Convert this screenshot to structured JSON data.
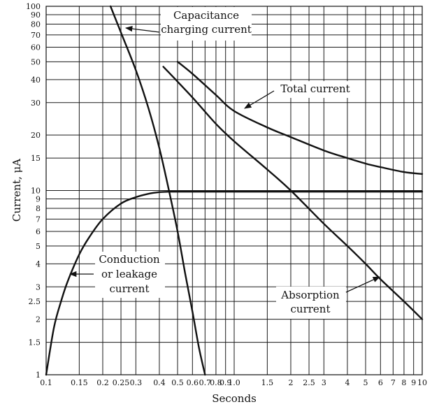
{
  "chart_data": {
    "type": "line",
    "title": "",
    "xlabel": "Seconds",
    "ylabel": "Current, μA",
    "xscale": "log",
    "yscale": "log",
    "xlim": [
      0.1,
      10
    ],
    "ylim": [
      1,
      100
    ],
    "grid": true,
    "x_tick_labels": [
      {
        "v": 0.1,
        "t": "0.1"
      },
      {
        "v": 0.15,
        "t": "0.15"
      },
      {
        "v": 0.2,
        "t": "0.2"
      },
      {
        "v": 0.25,
        "t": "0.25"
      },
      {
        "v": 0.3,
        "t": "0.3"
      },
      {
        "v": 0.4,
        "t": "0.4"
      },
      {
        "v": 0.5,
        "t": "0.5"
      },
      {
        "v": 0.6,
        "t": "0.6"
      },
      {
        "v": 0.7,
        "t": "0.7"
      },
      {
        "v": 0.8,
        "t": "0.8"
      },
      {
        "v": 0.9,
        "t": "0.9"
      },
      {
        "v": 1.0,
        "t": "1.0"
      },
      {
        "v": 1.5,
        "t": "1.5"
      },
      {
        "v": 2,
        "t": "2"
      },
      {
        "v": 2.5,
        "t": "2.5"
      },
      {
        "v": 3,
        "t": "3"
      },
      {
        "v": 4,
        "t": "4"
      },
      {
        "v": 5,
        "t": "5"
      },
      {
        "v": 6,
        "t": "6"
      },
      {
        "v": 7,
        "t": "7"
      },
      {
        "v": 8,
        "t": "8"
      },
      {
        "v": 9,
        "t": "9"
      },
      {
        "v": 10,
        "t": "10"
      }
    ],
    "y_tick_labels": [
      {
        "v": 1,
        "t": "1"
      },
      {
        "v": 1.5,
        "t": "1.5"
      },
      {
        "v": 2,
        "t": "2"
      },
      {
        "v": 2.5,
        "t": "2.5"
      },
      {
        "v": 3,
        "t": "3"
      },
      {
        "v": 4,
        "t": "4"
      },
      {
        "v": 5,
        "t": "5"
      },
      {
        "v": 6,
        "t": "6"
      },
      {
        "v": 7,
        "t": "7"
      },
      {
        "v": 8,
        "t": "8"
      },
      {
        "v": 9,
        "t": "9"
      },
      {
        "v": 10,
        "t": "10"
      },
      {
        "v": 15,
        "t": "15"
      },
      {
        "v": 20,
        "t": "20"
      },
      {
        "v": 30,
        "t": "30"
      },
      {
        "v": 40,
        "t": "40"
      },
      {
        "v": 50,
        "t": "50"
      },
      {
        "v": 60,
        "t": "60"
      },
      {
        "v": 70,
        "t": "70"
      },
      {
        "v": 80,
        "t": "80"
      },
      {
        "v": 90,
        "t": "90"
      },
      {
        "v": 100,
        "t": "100"
      }
    ],
    "x_grid_values": [
      0.1,
      0.15,
      0.2,
      0.25,
      0.3,
      0.4,
      0.5,
      0.6,
      0.7,
      0.8,
      0.9,
      1.0,
      1.5,
      2,
      2.5,
      3,
      4,
      5,
      6,
      7,
      8,
      9,
      10
    ],
    "y_grid_values": [
      1,
      1.5,
      2,
      2.5,
      3,
      4,
      5,
      6,
      7,
      8,
      9,
      10,
      15,
      20,
      30,
      40,
      50,
      60,
      70,
      80,
      90,
      100
    ],
    "series": [
      {
        "key": "capacitance",
        "points": [
          [
            0.22,
            100
          ],
          [
            0.25,
            72
          ],
          [
            0.3,
            45
          ],
          [
            0.35,
            28
          ],
          [
            0.4,
            17
          ],
          [
            0.45,
            10
          ],
          [
            0.5,
            6
          ],
          [
            0.55,
            3.5
          ],
          [
            0.6,
            2.2
          ],
          [
            0.65,
            1.4
          ],
          [
            0.7,
            1.0
          ]
        ]
      },
      {
        "key": "conduction",
        "points": [
          [
            0.1,
            1.0
          ],
          [
            0.11,
            1.8
          ],
          [
            0.12,
            2.5
          ],
          [
            0.13,
            3.2
          ],
          [
            0.15,
            4.5
          ],
          [
            0.17,
            5.6
          ],
          [
            0.2,
            7.0
          ],
          [
            0.25,
            8.5
          ],
          [
            0.3,
            9.2
          ],
          [
            0.35,
            9.6
          ],
          [
            0.4,
            9.8
          ],
          [
            0.45,
            9.85
          ],
          [
            0.5,
            9.85
          ],
          [
            1,
            9.85
          ],
          [
            2,
            9.85
          ],
          [
            5,
            9.85
          ],
          [
            10,
            9.85
          ]
        ]
      },
      {
        "key": "absorption",
        "points": [
          [
            0.42,
            47
          ],
          [
            0.6,
            32
          ],
          [
            0.8,
            23
          ],
          [
            1.0,
            18.5
          ],
          [
            1.5,
            13
          ],
          [
            2.0,
            10
          ],
          [
            3.0,
            6.6
          ],
          [
            4.0,
            5.0
          ],
          [
            5.0,
            4.0
          ],
          [
            6.0,
            3.3
          ],
          [
            8.0,
            2.5
          ],
          [
            10,
            2.0
          ]
        ]
      },
      {
        "key": "total",
        "points": [
          [
            0.5,
            50
          ],
          [
            0.6,
            43
          ],
          [
            0.8,
            33
          ],
          [
            1.0,
            27
          ],
          [
            1.5,
            22
          ],
          [
            2,
            19.5
          ],
          [
            3,
            16.5
          ],
          [
            4,
            15
          ],
          [
            5,
            14
          ],
          [
            6,
            13.4
          ],
          [
            8,
            12.6
          ],
          [
            10,
            12.3
          ]
        ]
      }
    ],
    "annotations": [
      {
        "key": "capacitance",
        "lines": [
          "Capacitance",
          "charging current"
        ]
      },
      {
        "key": "total",
        "lines": [
          "Total current"
        ]
      },
      {
        "key": "conduction",
        "lines": [
          "Conduction",
          "or leakage",
          "current"
        ]
      },
      {
        "key": "absorption",
        "lines": [
          "Absorption",
          "current"
        ]
      }
    ]
  }
}
